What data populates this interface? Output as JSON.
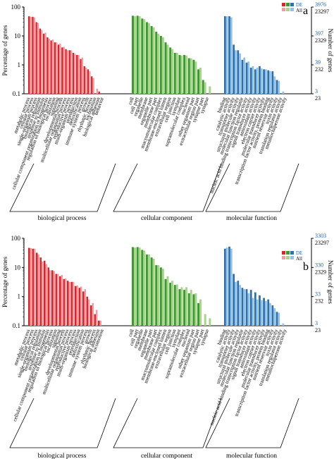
{
  "figure": "GO functional classification (two panels)",
  "colors": {
    "bp_de": "#d9242b",
    "bp_all": "#f19a9f",
    "cc_de": "#3a9b2f",
    "cc_all": "#a8d48a",
    "mf_de": "#2f6fb0",
    "mf_all": "#8ec3e6",
    "right_axis_text": "#1f5fa5"
  },
  "chart_data": [
    {
      "type": "bar",
      "panel_label": "a",
      "ylabel": "Percentage of genes",
      "ylabel_right": "Number of genes",
      "yscale": "log",
      "ylim": [
        0.1,
        100
      ],
      "yticks": [
        "100",
        "10",
        "1",
        "0.1"
      ],
      "right_ticks": [
        {
          "de": "3976",
          "all": "23297"
        },
        {
          "de": "397",
          "all": "2329"
        },
        {
          "de": "39",
          "all": "232"
        },
        {
          "de": "3",
          "all": "23"
        }
      ],
      "legend": [
        "DE",
        "All"
      ],
      "groups": [
        {
          "name": "biological process",
          "color_key": "bp",
          "categories": [
            "metabolic process",
            "cellular process",
            "single-organism process",
            "biological regulation",
            "response to stimulus",
            "cellular component organization or biogenesis",
            "regulation of biological process",
            "localization",
            "signaling",
            "developmental process",
            "multicellular organismal process",
            "reproductive process",
            "multi-organism process",
            "reproduction",
            "detoxification",
            "immune system process",
            "growth",
            "rhythmic process",
            "locomotion",
            "biological adhesion",
            "behavior"
          ],
          "de": [
            48,
            46,
            30,
            18,
            12,
            9,
            7,
            6,
            5,
            4,
            3.5,
            3.2,
            2.6,
            2.2,
            1.6,
            0.9,
            0.7,
            0.4,
            0,
            0.12,
            0
          ],
          "all": [
            46,
            44,
            28,
            16,
            13,
            8,
            7.5,
            6,
            5.5,
            4.2,
            3.2,
            3.2,
            2.4,
            2.2,
            1.8,
            0.8,
            0.6,
            0.35,
            0.15,
            0.1,
            0
          ]
        },
        {
          "name": "cellular component",
          "color_key": "cc",
          "categories": [
            "cell",
            "cell part",
            "organelle",
            "membrane",
            "organelle part",
            "membrane part",
            "macromolecular complex",
            "membrane-enclosed lumen",
            "extracellular region",
            "cell junction",
            "symplast",
            "supramolecular complex",
            "nucleoid",
            "other organism part",
            "extracellular region part",
            "synapse part",
            "synapse"
          ],
          "de": [
            50,
            50,
            40,
            30,
            22,
            14,
            10,
            6,
            4,
            2.6,
            2.2,
            2.2,
            1.7,
            1.5,
            0.7,
            0.3,
            0
          ],
          "all": [
            48,
            48,
            38,
            28,
            20,
            12,
            9,
            5,
            3.5,
            2.6,
            2.1,
            2.1,
            1.7,
            1.3,
            0.8,
            0.25,
            0.18
          ]
        },
        {
          "name": "molecular function",
          "color_key": "mf",
          "categories": [
            "binding",
            "catalytic activity",
            "transporter activity",
            "structural molecule activity",
            "molecular function regulator",
            "nucleic acid binding transcription factor activity",
            "signal transducer activity",
            "antioxidant activity",
            "electron carrier activity",
            "molecular transducer activity",
            "transcription factor activity, protein binding",
            "nutrient reservoir activity",
            "toxin activity",
            "translation regulator activity",
            "metallochaperone activity"
          ],
          "de": [
            48,
            48,
            5,
            3.2,
            1.5,
            1.2,
            0.8,
            0.7,
            0.9,
            0.7,
            0.65,
            0.6,
            0.3,
            0,
            0
          ],
          "all": [
            48,
            44,
            3.2,
            2.5,
            1.8,
            1.3,
            0.9,
            0.8,
            0.75,
            0.7,
            0.6,
            0.4,
            0.28,
            0.12,
            0
          ]
        }
      ]
    },
    {
      "type": "bar",
      "panel_label": "b",
      "ylabel": "Percentage of genes",
      "ylabel_right": "Number of genes",
      "yscale": "log",
      "ylim": [
        0.1,
        100
      ],
      "yticks": [
        "100",
        "10",
        "1",
        "0.1"
      ],
      "right_ticks": [
        {
          "de": "3303",
          "all": "23297"
        },
        {
          "de": "330",
          "all": "2329"
        },
        {
          "de": "33",
          "all": "232"
        },
        {
          "de": "3",
          "all": "23"
        }
      ],
      "legend": [
        "DE",
        "All"
      ],
      "groups": [
        {
          "name": "biological process",
          "color_key": "bp",
          "categories": [
            "metabolic process",
            "cellular process",
            "single-organism process",
            "biological regulation",
            "response to stimulus",
            "cellular component organization or biogenesis",
            "regulation of biological process",
            "localization",
            "signaling",
            "developmental process",
            "multicellular organismal process",
            "reproductive process",
            "multi-organism process",
            "reproduction",
            "detoxification",
            "immune system process",
            "growth",
            "rhythmic process",
            "biological adhesion",
            "locomotion"
          ],
          "de": [
            47,
            44,
            32,
            22,
            17,
            10,
            8,
            6,
            5,
            4,
            3.5,
            3.2,
            2.3,
            2,
            1.5,
            1,
            0.5,
            0.25,
            0.15,
            0
          ],
          "all": [
            46,
            44,
            28,
            16,
            13,
            8,
            7.5,
            6,
            5.5,
            4.2,
            3.2,
            3.2,
            2.4,
            2.2,
            1.8,
            0.8,
            0.6,
            0.35,
            0.15,
            0.1
          ]
        },
        {
          "name": "cellular component",
          "color_key": "cc",
          "categories": [
            "cell",
            "cell part",
            "organelle",
            "membrane",
            "organelle part",
            "membrane part",
            "macromolecular complex",
            "membrane-enclosed lumen",
            "extracellular region",
            "cell junction",
            "symplast",
            "supramolecular complex",
            "nucleoid",
            "other organism part",
            "extracellular region part",
            "synapse part",
            "synapse"
          ],
          "de": [
            50,
            50,
            40,
            28,
            22,
            12,
            10,
            4,
            3,
            2.5,
            1.8,
            1.7,
            1.3,
            1.2,
            0.6,
            0,
            0
          ],
          "all": [
            48,
            48,
            38,
            28,
            20,
            12,
            9,
            5,
            3.5,
            2.6,
            2.1,
            2.1,
            1.7,
            1.3,
            0.8,
            0.25,
            0.18
          ]
        },
        {
          "name": "molecular function",
          "color_key": "mf",
          "categories": [
            "binding",
            "catalytic activity",
            "transporter activity",
            "structural molecule activity",
            "molecular function regulator",
            "nucleic acid binding transcription factor activity",
            "signal transducer activity",
            "antioxidant activity",
            "electron carrier activity",
            "molecular transducer activity",
            "transcription factor activity, protein binding",
            "nutrient reservoir activity",
            "toxin activity",
            "translation regulator activity",
            "metallochaperone activity"
          ],
          "de": [
            44,
            52,
            6,
            3.5,
            2,
            1.8,
            1.7,
            1.4,
            1.1,
            0.9,
            0.8,
            0.5,
            0.3,
            0,
            0
          ],
          "all": [
            48,
            44,
            3.2,
            2.5,
            1.8,
            1.3,
            0.9,
            0.8,
            0.75,
            0.7,
            0.6,
            0.4,
            0.28,
            0.12,
            0
          ]
        }
      ]
    }
  ]
}
